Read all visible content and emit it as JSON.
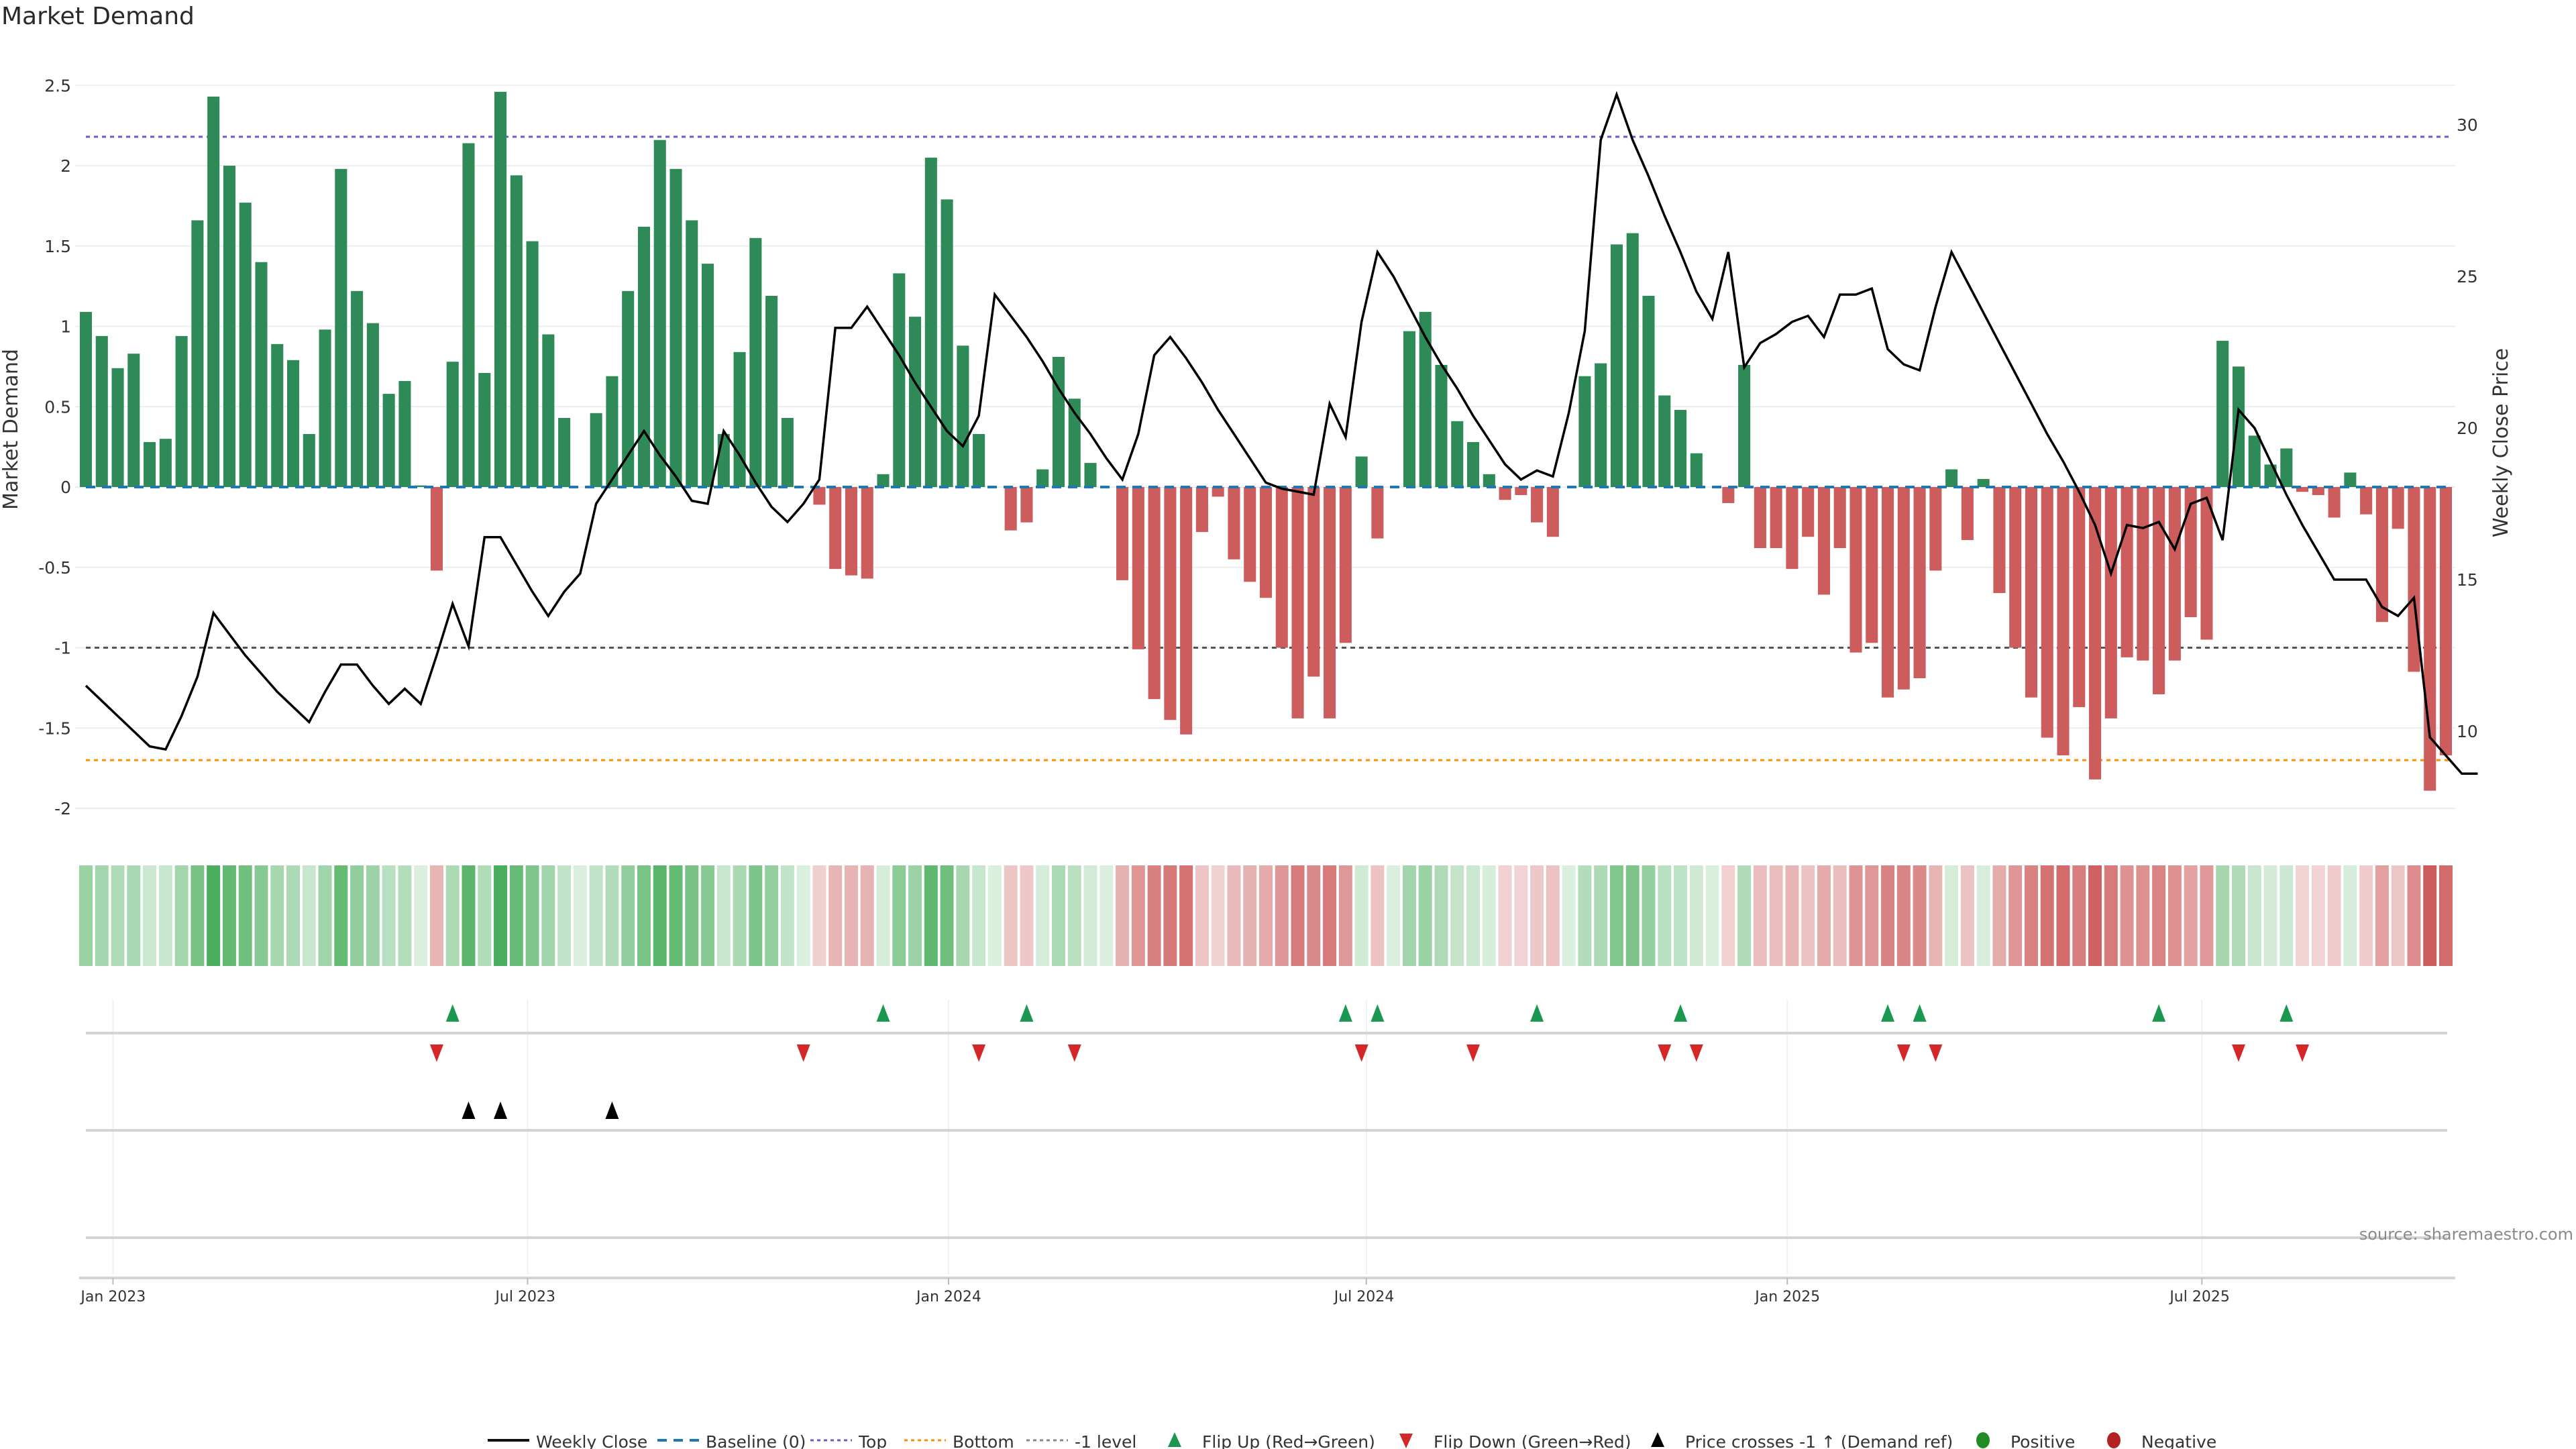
{
  "title": "Market Demand",
  "source": "source: sharemaestro.com",
  "colors": {
    "positive_bar": "#2e8b57",
    "negative_bar": "#cd5c5c",
    "price_line": "#000000",
    "baseline": "#1f77b4",
    "top_line": "#6a5acd",
    "bottom_line": "#ff8c00",
    "minus1_line": "#555555",
    "flip_up": "#1a9850",
    "flip_down": "#d62728",
    "price_cross": "#000000",
    "legend_positive": "#228b22",
    "legend_negative": "#b22222"
  },
  "chart_data": {
    "type": "bar",
    "title": "Market Demand",
    "ylabel": "Market Demand",
    "y2label": "Weekly Close Price",
    "ylim": [
      -2.1,
      2.65
    ],
    "y2lim": [
      7.3,
      33.8
    ],
    "yticks": [
      "2.5",
      "2",
      "1.5",
      "1",
      "0.5",
      "0",
      "-0.5",
      "-1",
      "-1.5",
      "-2"
    ],
    "yticks_values": [
      2.5,
      2,
      1.5,
      1,
      0.5,
      0,
      -0.5,
      -1,
      -1.5,
      -2
    ],
    "y2ticks": [
      "30",
      "25",
      "20",
      "15",
      "10"
    ],
    "y2ticks_values": [
      30,
      25,
      20,
      15,
      10
    ],
    "xticks": [
      "Jan 2023",
      "Jul 2023",
      "Jan 2024",
      "Jul 2024",
      "Jan 2025",
      "Jul 2025"
    ],
    "xticks_week_index": [
      1.7,
      27.7,
      54.1,
      80.3,
      106.7,
      132.7
    ],
    "reference_lines": {
      "baseline": 0,
      "top": 2.18,
      "bottom": -1.7,
      "minus1": -1.0
    },
    "demand": [
      1.09,
      0.94,
      0.74,
      0.83,
      0.28,
      0.3,
      0.94,
      1.66,
      2.43,
      2.0,
      1.77,
      1.4,
      0.89,
      0.79,
      0.33,
      0.98,
      1.98,
      1.22,
      1.02,
      0.58,
      0.66,
      0.01,
      -0.52,
      0.78,
      2.14,
      0.71,
      2.46,
      1.94,
      1.53,
      0.95,
      0.43,
      0.0,
      0.46,
      0.69,
      1.22,
      1.62,
      2.16,
      1.98,
      1.66,
      1.39,
      0.33,
      0.84,
      1.55,
      1.19,
      0.43,
      0.0,
      -0.11,
      -0.51,
      -0.55,
      -0.57,
      0.08,
      1.33,
      1.06,
      2.05,
      1.79,
      0.88,
      0.33,
      0.0,
      -0.27,
      -0.22,
      0.11,
      0.81,
      0.55,
      0.15,
      0.0,
      -0.58,
      -1.01,
      -1.32,
      -1.45,
      -1.54,
      -0.28,
      -0.06,
      -0.45,
      -0.59,
      -0.69,
      -1.0,
      -1.44,
      -1.18,
      -1.44,
      -0.97,
      0.19,
      -0.32,
      0.0,
      0.97,
      1.09,
      0.76,
      0.41,
      0.28,
      0.08,
      -0.08,
      -0.05,
      -0.22,
      -0.31,
      0.0,
      0.69,
      0.77,
      1.51,
      1.58,
      1.19,
      0.57,
      0.48,
      0.21,
      0.0,
      -0.1,
      0.76,
      -0.38,
      -0.38,
      -0.51,
      -0.31,
      -0.67,
      -0.38,
      -1.03,
      -0.97,
      -1.31,
      -1.26,
      -1.19,
      -0.52,
      0.11,
      -0.33,
      0.05,
      -0.66,
      -1.0,
      -1.31,
      -1.56,
      -1.67,
      -1.37,
      -1.82,
      -1.44,
      -1.06,
      -1.08,
      -1.29,
      -1.08,
      -0.81,
      -0.95,
      0.91,
      0.75,
      0.32,
      0.14,
      0.24,
      -0.03,
      -0.05,
      -0.19,
      0.09,
      -0.17,
      -0.84,
      -0.26,
      -1.15,
      -1.89,
      -1.67
    ],
    "price": [
      11.5,
      11.0,
      10.5,
      10.0,
      9.5,
      9.4,
      10.5,
      11.8,
      13.9,
      13.2,
      12.5,
      11.9,
      11.3,
      10.8,
      10.3,
      11.3,
      12.2,
      12.2,
      11.5,
      10.9,
      11.4,
      10.9,
      12.5,
      14.2,
      12.8,
      16.4,
      16.4,
      15.5,
      14.6,
      13.8,
      14.6,
      15.2,
      17.5,
      18.3,
      19.1,
      19.9,
      19.1,
      18.4,
      17.6,
      17.5,
      19.9,
      19.1,
      18.2,
      17.4,
      16.9,
      17.5,
      18.3,
      23.3,
      23.3,
      24.0,
      23.2,
      22.4,
      21.5,
      20.7,
      19.9,
      19.4,
      20.4,
      24.4,
      23.7,
      23.0,
      22.2,
      21.3,
      20.5,
      19.8,
      19.0,
      18.3,
      19.8,
      22.4,
      23.0,
      22.3,
      21.5,
      20.6,
      19.8,
      19.0,
      18.2,
      18.0,
      17.9,
      17.8,
      20.8,
      19.7,
      23.5,
      25.8,
      25.0,
      24.0,
      23.0,
      22.1,
      21.3,
      20.4,
      19.6,
      18.8,
      18.3,
      18.6,
      18.4,
      20.5,
      23.2,
      29.5,
      31.0,
      29.5,
      28.3,
      27.0,
      25.8,
      24.5,
      23.6,
      25.8,
      22.0,
      22.8,
      23.1,
      23.5,
      23.7,
      23.0,
      24.4,
      24.4,
      24.6,
      22.6,
      22.1,
      21.9,
      24.0,
      25.8,
      24.8,
      23.8,
      22.8,
      21.8,
      20.8,
      19.8,
      18.9,
      17.9,
      16.8,
      15.2,
      16.8,
      16.7,
      16.9,
      16.0,
      17.5,
      17.7,
      16.3,
      20.6,
      20.0,
      18.9,
      17.8,
      16.8,
      15.9,
      15.0,
      15.0,
      15.0,
      14.1,
      13.8,
      14.4,
      9.8,
      9.2,
      8.6,
      8.6
    ]
  },
  "signals": {
    "flip_up_weeks": [
      23,
      50,
      59,
      79,
      81,
      91,
      100,
      113,
      115,
      130,
      138
    ],
    "flip_down_weeks": [
      22,
      45,
      56,
      62,
      80,
      87,
      99,
      101,
      114,
      116,
      135,
      139
    ],
    "price_cross_weeks": [
      24,
      26,
      33
    ]
  },
  "legend": [
    {
      "key": "weekly-close",
      "label": "Weekly Close"
    },
    {
      "key": "baseline",
      "label": "Baseline (0)"
    },
    {
      "key": "top",
      "label": "Top"
    },
    {
      "key": "bottom",
      "label": "Bottom"
    },
    {
      "key": "minus1",
      "label": "-1 level"
    },
    {
      "key": "flip-up",
      "label": "Flip Up (Red→Green)"
    },
    {
      "key": "flip-down",
      "label": "Flip Down (Green→Red)"
    },
    {
      "key": "price-cross",
      "label": "Price crosses -1 ↑ (Demand ref)"
    },
    {
      "key": "positive",
      "label": "Positive"
    },
    {
      "key": "negative",
      "label": "Negative"
    }
  ]
}
